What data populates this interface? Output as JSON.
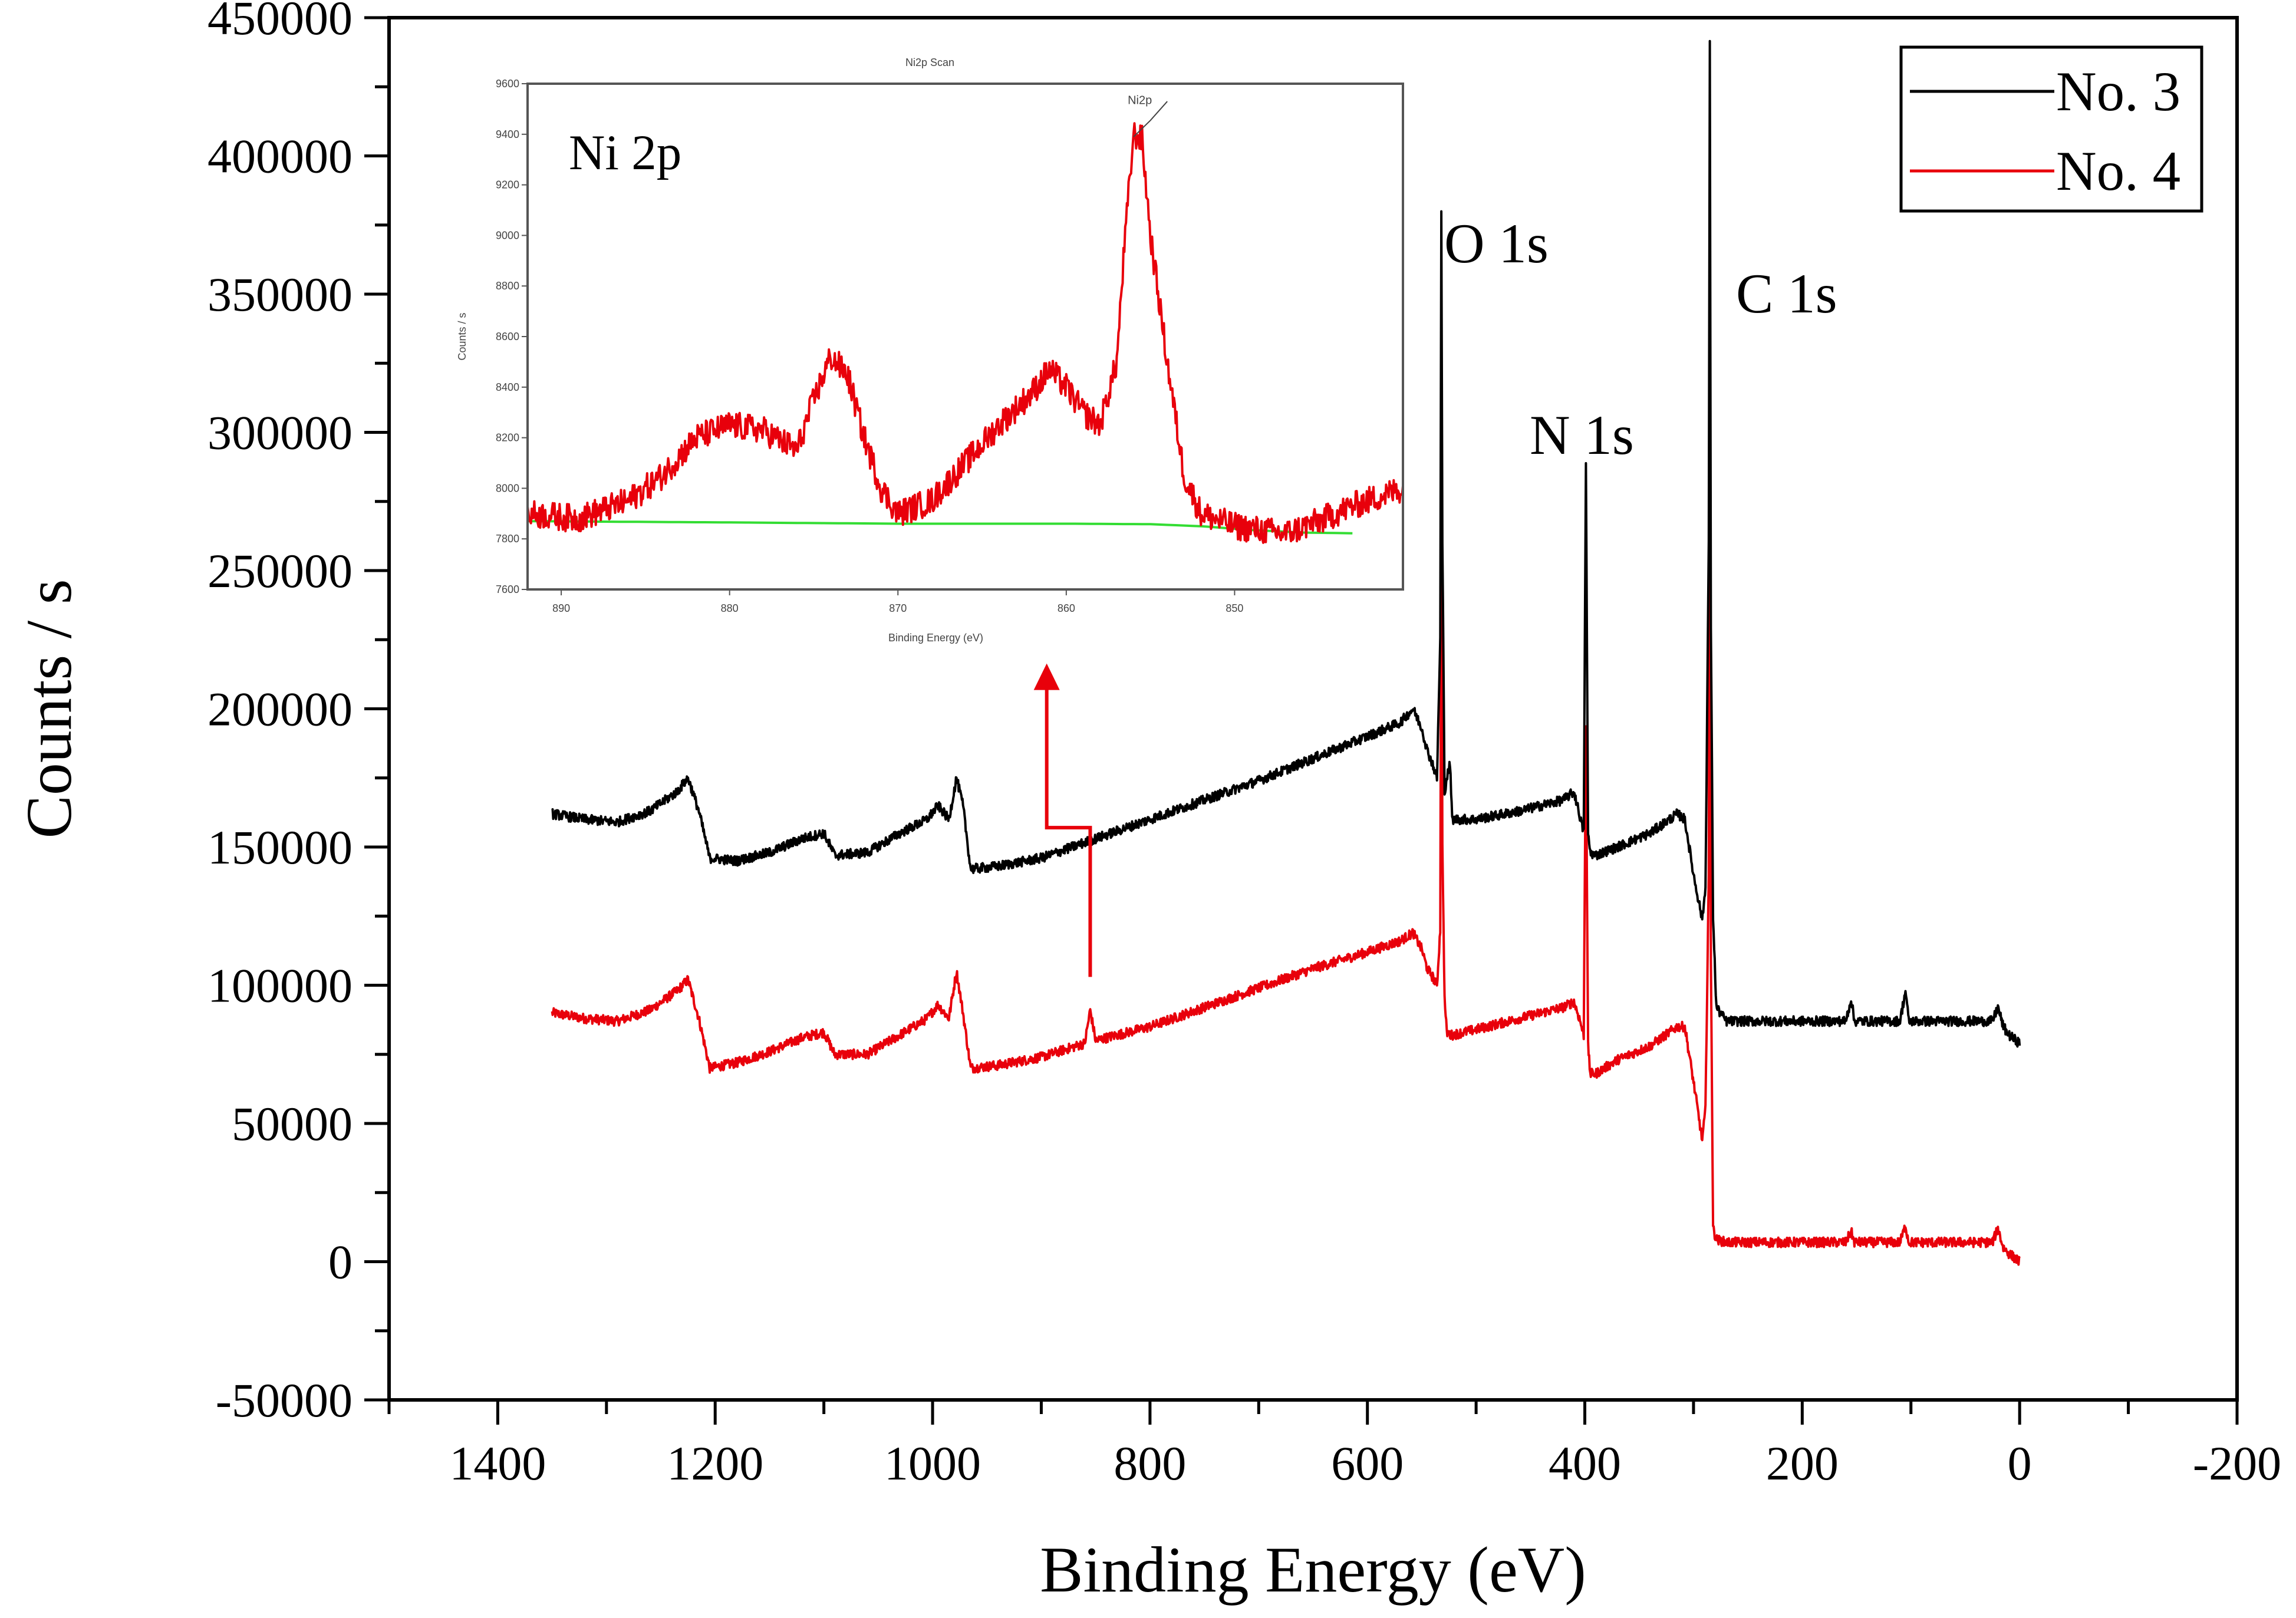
{
  "chart_data": [
    {
      "type": "line",
      "title": "",
      "xlabel": "Binding Energy (eV)",
      "ylabel": "Counts / s",
      "xlim": [
        1500,
        -200
      ],
      "ylim": [
        -50000,
        450000
      ],
      "x_reversed": true,
      "xticks": [
        1400,
        1200,
        1000,
        800,
        600,
        400,
        200,
        0,
        -200
      ],
      "xtick_labels": [
        "1400",
        "1200",
        "1000",
        "800",
        "600",
        "400",
        "200",
        "0",
        "-200"
      ],
      "yticks": [
        -50000,
        0,
        50000,
        100000,
        150000,
        200000,
        250000,
        300000,
        350000,
        400000,
        450000
      ],
      "ytick_labels": [
        "-50000",
        "0",
        "50000",
        "100000",
        "150000",
        "200000",
        "250000",
        "300000",
        "350000",
        "400000",
        "450000"
      ],
      "legend": {
        "position": "top-right",
        "entries": [
          {
            "label": "No. 3",
            "color": "#000000"
          },
          {
            "label": "No. 4",
            "color": "#e8000b"
          }
        ]
      },
      "annotations": [
        {
          "text": "O 1s",
          "x": 532
        },
        {
          "text": "N 1s",
          "x": 399
        },
        {
          "text": "C 1s",
          "x": 285
        }
      ],
      "arrow": {
        "color": "#e8000b",
        "path_points": [
          [
            855,
            103000
          ],
          [
            855,
            157000
          ],
          [
            895,
            157000
          ],
          [
            895,
            210000
          ]
        ]
      },
      "series": [
        {
          "name": "No. 3",
          "color": "#000000",
          "x": [
            1350,
            1320,
            1290,
            1260,
            1235,
            1225,
            1215,
            1205,
            1180,
            1150,
            1120,
            1100,
            1090,
            1060,
            1030,
            1005,
            995,
            985,
            978,
            972,
            965,
            940,
            900,
            850,
            800,
            750,
            700,
            650,
            600,
            570,
            558,
            550,
            545,
            540,
            536,
            533,
            532,
            531,
            529,
            527,
            524,
            522,
            500,
            460,
            420,
            410,
            405,
            401,
            399,
            397,
            395,
            390,
            370,
            340,
            315,
            308,
            300,
            292,
            289,
            286,
            285,
            284,
            282,
            279,
            270,
            250,
            200,
            160,
            155,
            152,
            110,
            105,
            102,
            60,
            30,
            25,
            20,
            15,
            10,
            0
          ],
          "y": [
            162000,
            160000,
            159000,
            163000,
            170000,
            175000,
            163000,
            146000,
            145000,
            148000,
            153000,
            155000,
            147000,
            148000,
            155000,
            160000,
            165000,
            160000,
            175000,
            165000,
            142000,
            143000,
            146000,
            153000,
            160000,
            167000,
            174000,
            182000,
            190000,
            195000,
            200000,
            193000,
            185000,
            180000,
            175000,
            225000,
            380000,
            260000,
            170000,
            175000,
            180000,
            160000,
            160000,
            163000,
            167000,
            170000,
            162000,
            155000,
            290000,
            155000,
            148000,
            147000,
            150000,
            155000,
            162000,
            160000,
            140000,
            124000,
            135000,
            260000,
            440000,
            230000,
            125000,
            92000,
            87000,
            87000,
            87000,
            87000,
            95000,
            87000,
            87000,
            98000,
            87000,
            87000,
            87000,
            87000,
            92000,
            85000,
            82000,
            79000
          ]
        },
        {
          "name": "No. 4",
          "color": "#e8000b",
          "x": [
            1350,
            1320,
            1290,
            1260,
            1235,
            1225,
            1215,
            1205,
            1180,
            1150,
            1120,
            1100,
            1090,
            1060,
            1030,
            1005,
            995,
            985,
            978,
            972,
            965,
            940,
            900,
            860,
            855,
            850,
            800,
            750,
            700,
            650,
            600,
            570,
            558,
            550,
            545,
            540,
            536,
            533,
            532,
            531,
            529,
            527,
            524,
            522,
            500,
            460,
            420,
            410,
            405,
            401,
            399,
            397,
            395,
            390,
            370,
            340,
            315,
            308,
            300,
            292,
            289,
            286,
            285,
            284,
            282,
            279,
            270,
            250,
            200,
            160,
            155,
            152,
            110,
            105,
            102,
            60,
            30,
            25,
            20,
            15,
            10,
            0
          ],
          "y": [
            90000,
            88000,
            87000,
            91000,
            98000,
            102000,
            88000,
            70000,
            72000,
            76000,
            81000,
            83000,
            75000,
            75000,
            82000,
            88000,
            93000,
            88000,
            105000,
            90000,
            70000,
            71000,
            74000,
            79000,
            91000,
            80000,
            85000,
            92000,
            99000,
            106000,
            112000,
            116000,
            119000,
            113000,
            106000,
            103000,
            100000,
            120000,
            280000,
            150000,
            95000,
            83000,
            82000,
            82000,
            84000,
            88000,
            92000,
            94000,
            88000,
            82000,
            195000,
            78000,
            68000,
            68000,
            73000,
            78000,
            85000,
            85000,
            65000,
            44000,
            55000,
            140000,
            350000,
            110000,
            12000,
            8000,
            7000,
            7000,
            7000,
            7000,
            11000,
            7000,
            7000,
            13000,
            7000,
            7000,
            7000,
            7000,
            12000,
            5000,
            3000,
            0
          ]
        }
      ]
    },
    {
      "type": "line",
      "title": "Ni2p Scan",
      "label": "Ni 2p",
      "xlabel": "Binding Energy (eV)",
      "ylabel": "Counts / s",
      "xlim": [
        892,
        840
      ],
      "ylim": [
        7600,
        9600
      ],
      "x_reversed": true,
      "xticks": [
        890,
        880,
        870,
        860,
        850
      ],
      "xtick_labels": [
        "890",
        "880",
        "870",
        "860",
        "850"
      ],
      "yticks": [
        7600,
        7800,
        8000,
        8200,
        8400,
        8600,
        8800,
        9000,
        9200,
        9400,
        9600
      ],
      "ytick_labels": [
        "7600",
        "7800",
        "8000",
        "8200",
        "8400",
        "8600",
        "8800",
        "9000",
        "9200",
        "9400",
        "9600"
      ],
      "annotations": [
        {
          "text": "Ni2p",
          "x": 856,
          "y": 9470
        }
      ],
      "series": [
        {
          "name": "Ni2p",
          "color": "#e8000b",
          "x": [
            892,
            889,
            886,
            884,
            882,
            880,
            878,
            876,
            875,
            874,
            873,
            872,
            871,
            870,
            868,
            866,
            864,
            862,
            861,
            860,
            859,
            858,
            857,
            856.5,
            856,
            855.5,
            855,
            854,
            853,
            852,
            850,
            848,
            847,
            845,
            843,
            840
          ],
          "y": [
            7900,
            7880,
            7950,
            8050,
            8200,
            8250,
            8230,
            8150,
            8350,
            8520,
            8450,
            8200,
            8000,
            7900,
            7950,
            8100,
            8250,
            8380,
            8470,
            8400,
            8300,
            8250,
            8500,
            9000,
            9400,
            9380,
            9000,
            8500,
            8050,
            7900,
            7850,
            7830,
            7820,
            7870,
            7930,
            8000
          ]
        },
        {
          "name": "Background",
          "color": "#33dd33",
          "x": [
            892,
            880,
            870,
            860,
            855,
            852,
            849,
            846,
            843
          ],
          "y": [
            7870,
            7865,
            7860,
            7860,
            7858,
            7850,
            7835,
            7825,
            7822
          ]
        }
      ]
    }
  ]
}
